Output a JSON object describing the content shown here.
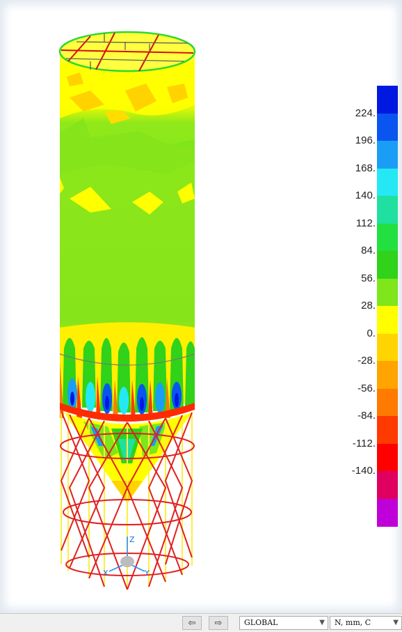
{
  "legend": {
    "tick_labels": [
      "224.",
      "196.",
      "168.",
      "140.",
      "112.",
      "84.",
      "56.",
      "28.",
      "0.",
      "-28.",
      "-56.",
      "-84.",
      "-112.",
      "-140."
    ],
    "colors": [
      "#0018e0",
      "#0a55f0",
      "#1a9ef5",
      "#24e9f5",
      "#1fe0a0",
      "#22e040",
      "#30d21a",
      "#7ee61a",
      "#ffff00",
      "#ffd400",
      "#ffa400",
      "#ff7a00",
      "#ff3a00",
      "#ff0000",
      "#e00060",
      "#c000d8"
    ]
  },
  "coordinate_system": {
    "axes": [
      "Z",
      "X",
      "Y"
    ]
  },
  "statusbar": {
    "prev_icon": "arrow-left-icon",
    "next_icon": "arrow-right-icon",
    "coord_system": "GLOBAL",
    "units": "N, mm, C"
  }
}
